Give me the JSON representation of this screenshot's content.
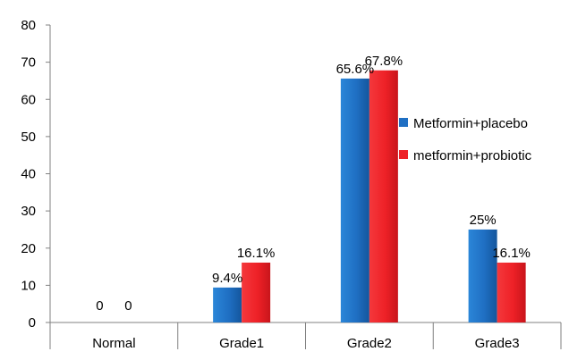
{
  "chart_data": {
    "type": "bar",
    "categories": [
      "Normal",
      "Grade1",
      "Grade2",
      "Grade3"
    ],
    "series": [
      {
        "name": "Metformin+placebo",
        "values": [
          0,
          9.4,
          65.6,
          25
        ],
        "labels": [
          "0",
          "9.4%",
          "65.6%",
          "25%"
        ],
        "color": "#1f6fc3"
      },
      {
        "name": "metformin+probiotic",
        "values": [
          0,
          16.1,
          67.8,
          16.1
        ],
        "labels": [
          "0",
          "16.1%",
          "67.8%",
          "16.1%"
        ],
        "color": "#ee2127"
      }
    ],
    "ylim": [
      0,
      80
    ],
    "yticks": [
      0,
      10,
      20,
      30,
      40,
      50,
      60,
      70,
      80
    ],
    "title": "",
    "xlabel": "",
    "ylabel": "",
    "grid": false,
    "legend": "right"
  }
}
